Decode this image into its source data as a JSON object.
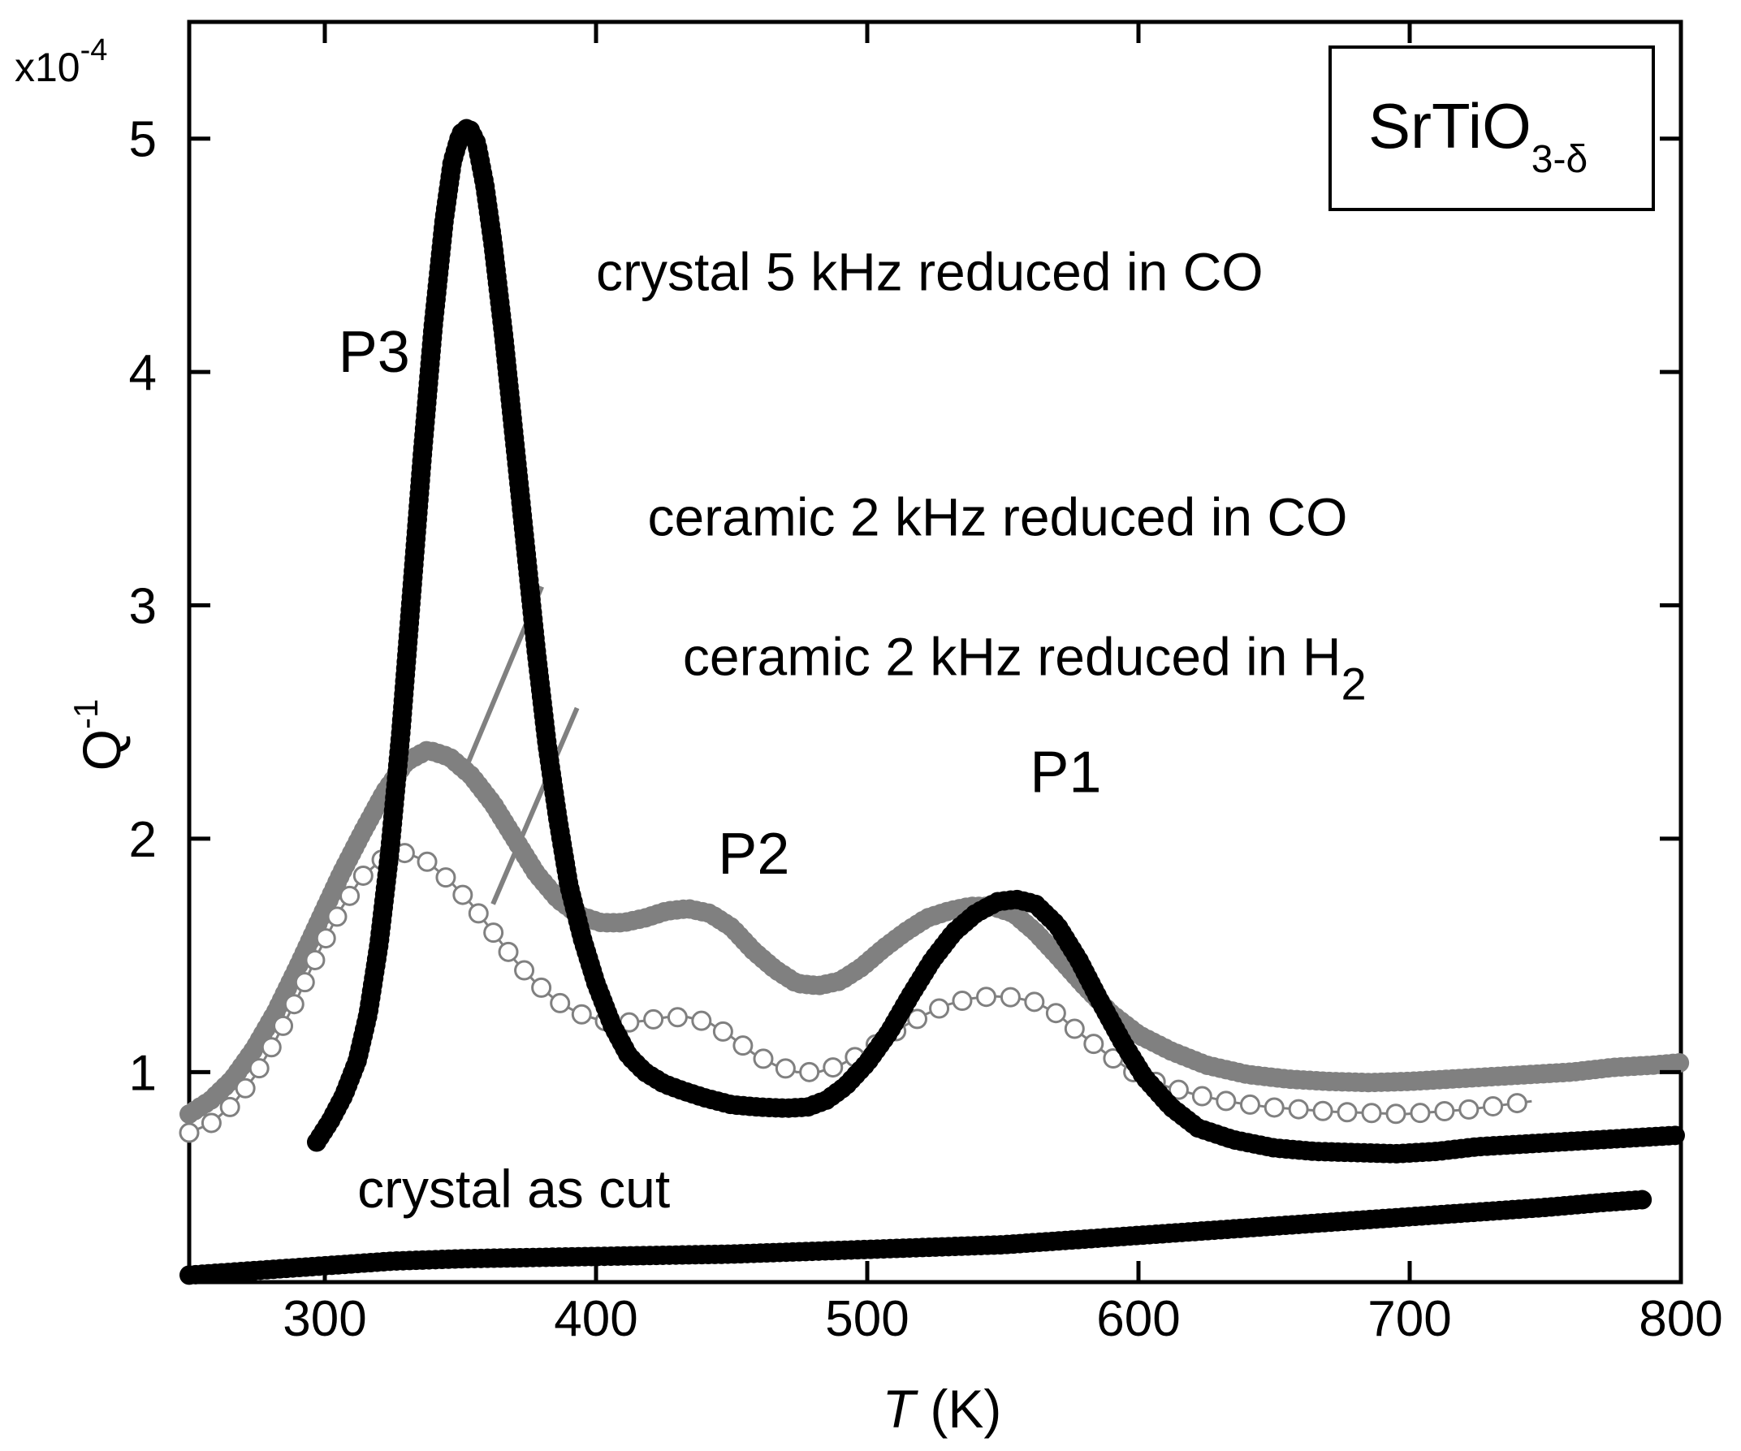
{
  "chart_data": {
    "type": "scatter",
    "title": "",
    "xlabel": {
      "symbol": "T",
      "unit": " (K)"
    },
    "ylabel": {
      "base": "Q",
      "sup": "-1"
    },
    "y_multiplier": {
      "base": "x10",
      "exp": "-4"
    },
    "xlim": [
      250,
      800
    ],
    "ylim": [
      0.1,
      5.5
    ],
    "xticks": [
      300,
      400,
      500,
      600,
      700,
      800
    ],
    "yticks": [
      1,
      2,
      3,
      4,
      5
    ],
    "grid": false,
    "legend_box": {
      "base": "SrTiO",
      "sub": "3-δ"
    },
    "peak_labels": [
      {
        "text": "P3",
        "x": 305,
        "y": 4.0
      },
      {
        "text": "P2",
        "x": 445,
        "y": 1.85
      },
      {
        "text": "P1",
        "x": 560,
        "y": 2.2
      }
    ],
    "annotations": [
      {
        "id": "crystal-co",
        "text": "crystal 5 kHz reduced in CO",
        "x": 400,
        "y": 4.35
      },
      {
        "id": "ceramic-co",
        "text": "ceramic 2 kHz reduced in CO",
        "x": 419,
        "y": 3.3
      },
      {
        "id": "ceramic-h2",
        "text": "ceramic 2 kHz reduced in H",
        "sub": "2",
        "x": 432,
        "y": 2.7
      },
      {
        "id": "as-cut",
        "text": "crystal as cut",
        "x": 312,
        "y": 0.42
      }
    ],
    "series": [
      {
        "name": "crystal 5 kHz reduced in CO",
        "marker": "filled",
        "color": "#000000",
        "points": [
          [
            297,
            0.7
          ],
          [
            302,
            0.79
          ],
          [
            307,
            0.9
          ],
          [
            312,
            1.05
          ],
          [
            316,
            1.25
          ],
          [
            320,
            1.55
          ],
          [
            324,
            1.95
          ],
          [
            328,
            2.45
          ],
          [
            332,
            3.05
          ],
          [
            336,
            3.65
          ],
          [
            340,
            4.2
          ],
          [
            344,
            4.65
          ],
          [
            347,
            4.9
          ],
          [
            350,
            5.02
          ],
          [
            353,
            5.05
          ],
          [
            356,
            4.98
          ],
          [
            359,
            4.8
          ],
          [
            362,
            4.55
          ],
          [
            366,
            4.15
          ],
          [
            370,
            3.7
          ],
          [
            374,
            3.25
          ],
          [
            378,
            2.8
          ],
          [
            382,
            2.4
          ],
          [
            386,
            2.08
          ],
          [
            390,
            1.8
          ],
          [
            395,
            1.57
          ],
          [
            400,
            1.38
          ],
          [
            406,
            1.2
          ],
          [
            412,
            1.07
          ],
          [
            418,
            1.0
          ],
          [
            425,
            0.95
          ],
          [
            432,
            0.92
          ],
          [
            440,
            0.89
          ],
          [
            450,
            0.86
          ],
          [
            460,
            0.85
          ],
          [
            470,
            0.845
          ],
          [
            478,
            0.85
          ],
          [
            485,
            0.88
          ],
          [
            492,
            0.94
          ],
          [
            500,
            1.04
          ],
          [
            508,
            1.17
          ],
          [
            516,
            1.33
          ],
          [
            524,
            1.48
          ],
          [
            532,
            1.6
          ],
          [
            540,
            1.68
          ],
          [
            548,
            1.73
          ],
          [
            555,
            1.74
          ],
          [
            562,
            1.72
          ],
          [
            570,
            1.63
          ],
          [
            578,
            1.48
          ],
          [
            586,
            1.3
          ],
          [
            594,
            1.13
          ],
          [
            602,
            0.98
          ],
          [
            612,
            0.85
          ],
          [
            622,
            0.76
          ],
          [
            635,
            0.71
          ],
          [
            650,
            0.675
          ],
          [
            665,
            0.66
          ],
          [
            680,
            0.655
          ],
          [
            695,
            0.65
          ],
          [
            710,
            0.66
          ],
          [
            725,
            0.68
          ],
          [
            740,
            0.69
          ],
          [
            755,
            0.7
          ],
          [
            770,
            0.71
          ],
          [
            785,
            0.72
          ],
          [
            800,
            0.73
          ]
        ]
      },
      {
        "name": "ceramic 2 kHz reduced in CO",
        "marker": "filled",
        "color": "#808080",
        "points": [
          [
            250,
            0.82
          ],
          [
            258,
            0.88
          ],
          [
            266,
            0.97
          ],
          [
            274,
            1.1
          ],
          [
            282,
            1.26
          ],
          [
            290,
            1.45
          ],
          [
            298,
            1.65
          ],
          [
            306,
            1.85
          ],
          [
            314,
            2.03
          ],
          [
            322,
            2.2
          ],
          [
            330,
            2.33
          ],
          [
            338,
            2.38
          ],
          [
            346,
            2.35
          ],
          [
            354,
            2.27
          ],
          [
            362,
            2.15
          ],
          [
            370,
            2.0
          ],
          [
            378,
            1.85
          ],
          [
            386,
            1.74
          ],
          [
            394,
            1.67
          ],
          [
            402,
            1.64
          ],
          [
            410,
            1.64
          ],
          [
            418,
            1.66
          ],
          [
            426,
            1.69
          ],
          [
            434,
            1.7
          ],
          [
            442,
            1.68
          ],
          [
            450,
            1.62
          ],
          [
            458,
            1.52
          ],
          [
            466,
            1.44
          ],
          [
            474,
            1.38
          ],
          [
            482,
            1.37
          ],
          [
            490,
            1.39
          ],
          [
            498,
            1.45
          ],
          [
            506,
            1.53
          ],
          [
            514,
            1.6
          ],
          [
            522,
            1.66
          ],
          [
            530,
            1.69
          ],
          [
            538,
            1.71
          ],
          [
            546,
            1.71
          ],
          [
            554,
            1.68
          ],
          [
            562,
            1.6
          ],
          [
            570,
            1.5
          ],
          [
            580,
            1.37
          ],
          [
            590,
            1.25
          ],
          [
            600,
            1.16
          ],
          [
            612,
            1.09
          ],
          [
            625,
            1.03
          ],
          [
            640,
            0.99
          ],
          [
            655,
            0.97
          ],
          [
            670,
            0.96
          ],
          [
            685,
            0.955
          ],
          [
            700,
            0.96
          ],
          [
            715,
            0.97
          ],
          [
            730,
            0.98
          ],
          [
            745,
            0.99
          ],
          [
            760,
            1.0
          ],
          [
            775,
            1.02
          ],
          [
            790,
            1.03
          ],
          [
            800,
            1.04
          ]
        ]
      },
      {
        "name": "ceramic 2 kHz reduced in H2",
        "marker": "open",
        "color": "#808080",
        "points": [
          [
            250,
            0.74
          ],
          [
            258,
            0.78
          ],
          [
            266,
            0.86
          ],
          [
            274,
            0.98
          ],
          [
            282,
            1.14
          ],
          [
            290,
            1.32
          ],
          [
            298,
            1.52
          ],
          [
            306,
            1.7
          ],
          [
            314,
            1.84
          ],
          [
            322,
            1.92
          ],
          [
            330,
            1.94
          ],
          [
            338,
            1.9
          ],
          [
            346,
            1.82
          ],
          [
            354,
            1.72
          ],
          [
            362,
            1.6
          ],
          [
            370,
            1.48
          ],
          [
            378,
            1.38
          ],
          [
            386,
            1.3
          ],
          [
            394,
            1.25
          ],
          [
            402,
            1.22
          ],
          [
            410,
            1.21
          ],
          [
            418,
            1.22
          ],
          [
            426,
            1.235
          ],
          [
            434,
            1.235
          ],
          [
            442,
            1.21
          ],
          [
            450,
            1.15
          ],
          [
            458,
            1.08
          ],
          [
            466,
            1.03
          ],
          [
            474,
            1.0
          ],
          [
            482,
            1.0
          ],
          [
            490,
            1.03
          ],
          [
            498,
            1.08
          ],
          [
            506,
            1.14
          ],
          [
            514,
            1.2
          ],
          [
            522,
            1.25
          ],
          [
            530,
            1.29
          ],
          [
            538,
            1.315
          ],
          [
            546,
            1.325
          ],
          [
            554,
            1.32
          ],
          [
            562,
            1.3
          ],
          [
            570,
            1.25
          ],
          [
            578,
            1.17
          ],
          [
            588,
            1.08
          ],
          [
            598,
            1.0
          ],
          [
            610,
            0.94
          ],
          [
            622,
            0.9
          ],
          [
            635,
            0.87
          ],
          [
            648,
            0.85
          ],
          [
            660,
            0.84
          ],
          [
            672,
            0.83
          ],
          [
            685,
            0.825
          ],
          [
            698,
            0.82
          ],
          [
            710,
            0.83
          ],
          [
            722,
            0.84
          ],
          [
            735,
            0.86
          ],
          [
            745,
            0.875
          ]
        ]
      },
      {
        "name": "crystal as cut",
        "marker": "filled",
        "color": "#000000",
        "points": [
          [
            250,
            0.13
          ],
          [
            275,
            0.15
          ],
          [
            300,
            0.17
          ],
          [
            325,
            0.19
          ],
          [
            350,
            0.2
          ],
          [
            375,
            0.205
          ],
          [
            400,
            0.21
          ],
          [
            425,
            0.215
          ],
          [
            450,
            0.22
          ],
          [
            475,
            0.23
          ],
          [
            500,
            0.24
          ],
          [
            525,
            0.25
          ],
          [
            550,
            0.26
          ],
          [
            575,
            0.28
          ],
          [
            600,
            0.3
          ],
          [
            625,
            0.32
          ],
          [
            650,
            0.34
          ],
          [
            675,
            0.36
          ],
          [
            700,
            0.38
          ],
          [
            725,
            0.4
          ],
          [
            750,
            0.42
          ],
          [
            770,
            0.44
          ],
          [
            788,
            0.455
          ]
        ]
      }
    ]
  }
}
